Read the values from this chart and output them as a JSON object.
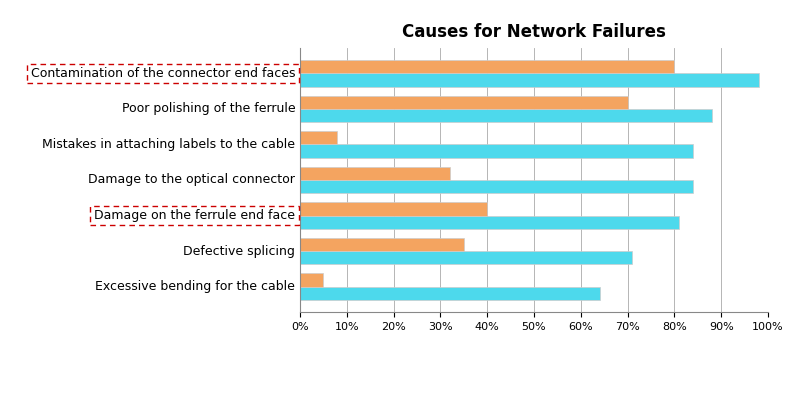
{
  "title": "Causes for Network Failures",
  "categories": [
    "Contamination of the connector end faces",
    "Poor polishing of the ferrule",
    "Mistakes in attaching labels to the cable",
    "Damage to the optical connector",
    "Damage on the ferrule end face",
    "Defective splicing",
    "Excessive bending for the cable"
  ],
  "network_owner": [
    80,
    70,
    8,
    32,
    40,
    35,
    5
  ],
  "installer": [
    98,
    88,
    84,
    84,
    81,
    71,
    64
  ],
  "network_owner_color": "#F4A460",
  "installer_color": "#4DD9EC",
  "background_color": "#FFFFFF",
  "title_fontsize": 12,
  "label_fontsize": 9,
  "tick_fontsize": 8,
  "legend_fontsize": 9,
  "boxed_categories": [
    0,
    4
  ],
  "box_color": "#CC0000"
}
